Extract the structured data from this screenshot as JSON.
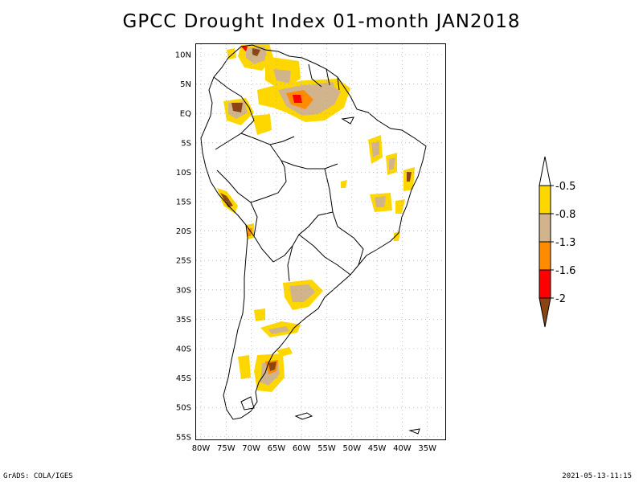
{
  "title": "GPCC Drought Index 01-month JAN2018",
  "footer": {
    "left": "GrADS: COLA/IGES",
    "right": "2021-05-13-11:15"
  },
  "map": {
    "lat_labels": [
      "10N",
      "5N",
      "EQ",
      "5S",
      "10S",
      "15S",
      "20S",
      "25S",
      "30S",
      "35S",
      "40S",
      "45S",
      "50S",
      "55S"
    ],
    "lon_labels": [
      "80W",
      "75W",
      "70W",
      "65W",
      "60W",
      "55W",
      "50W",
      "45W",
      "40W",
      "35W"
    ]
  },
  "legend": {
    "labels": [
      "-0.5",
      "-0.8",
      "-1.3",
      "-1.6",
      "-2"
    ],
    "colors": [
      "#ffffff",
      "#ffd700",
      "#d2b48c",
      "#ff8c00",
      "#ff0000",
      "#8b4513"
    ]
  }
}
